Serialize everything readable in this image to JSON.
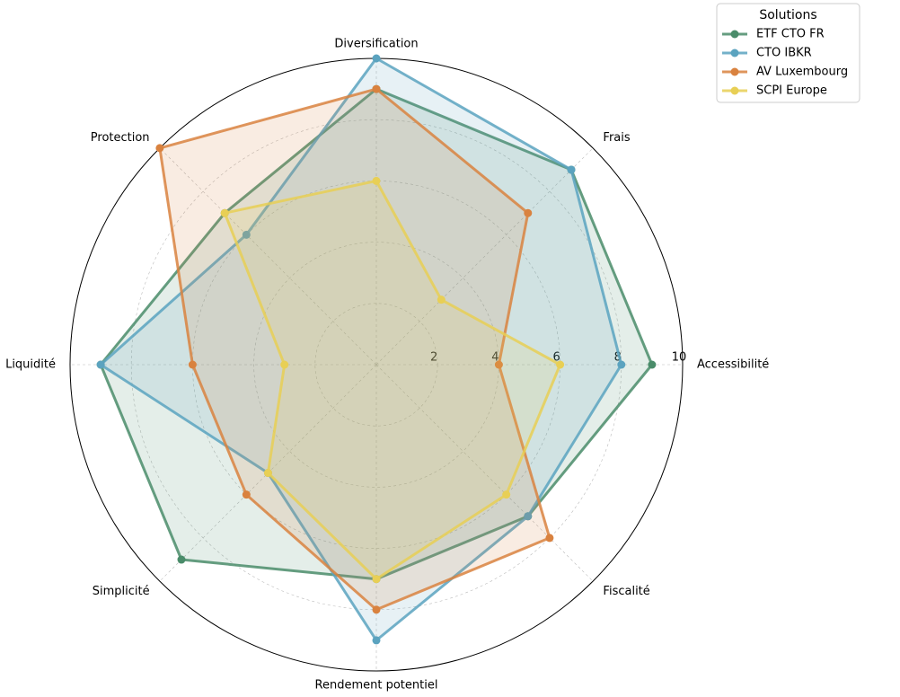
{
  "chart_data": {
    "type": "radar",
    "categories": [
      "Accessibilité",
      "Frais",
      "Diversification",
      "Protection",
      "Liquidité",
      "Simplicité",
      "Rendement potentiel",
      "Fiscalité"
    ],
    "rlim": [
      0,
      10
    ],
    "rticks": [
      2,
      4,
      6,
      8,
      10
    ],
    "grid": true,
    "legend": {
      "title": "Solutions",
      "position": "upper right"
    },
    "series": [
      {
        "name": "ETF CTO FR",
        "color": "#4a8c6a",
        "values": [
          9,
          9,
          9,
          7,
          9,
          9,
          7,
          7
        ]
      },
      {
        "name": "CTO IBKR",
        "color": "#5ba3bf",
        "values": [
          8,
          9,
          10,
          6,
          9,
          5,
          9,
          7
        ]
      },
      {
        "name": "AV Luxembourg",
        "color": "#d9823f",
        "values": [
          4,
          7,
          9,
          10,
          6,
          6,
          8,
          8
        ]
      },
      {
        "name": "SCPI Europe",
        "color": "#e8cf55",
        "values": [
          6,
          3,
          6,
          7,
          3,
          5,
          7,
          6
        ]
      }
    ]
  }
}
